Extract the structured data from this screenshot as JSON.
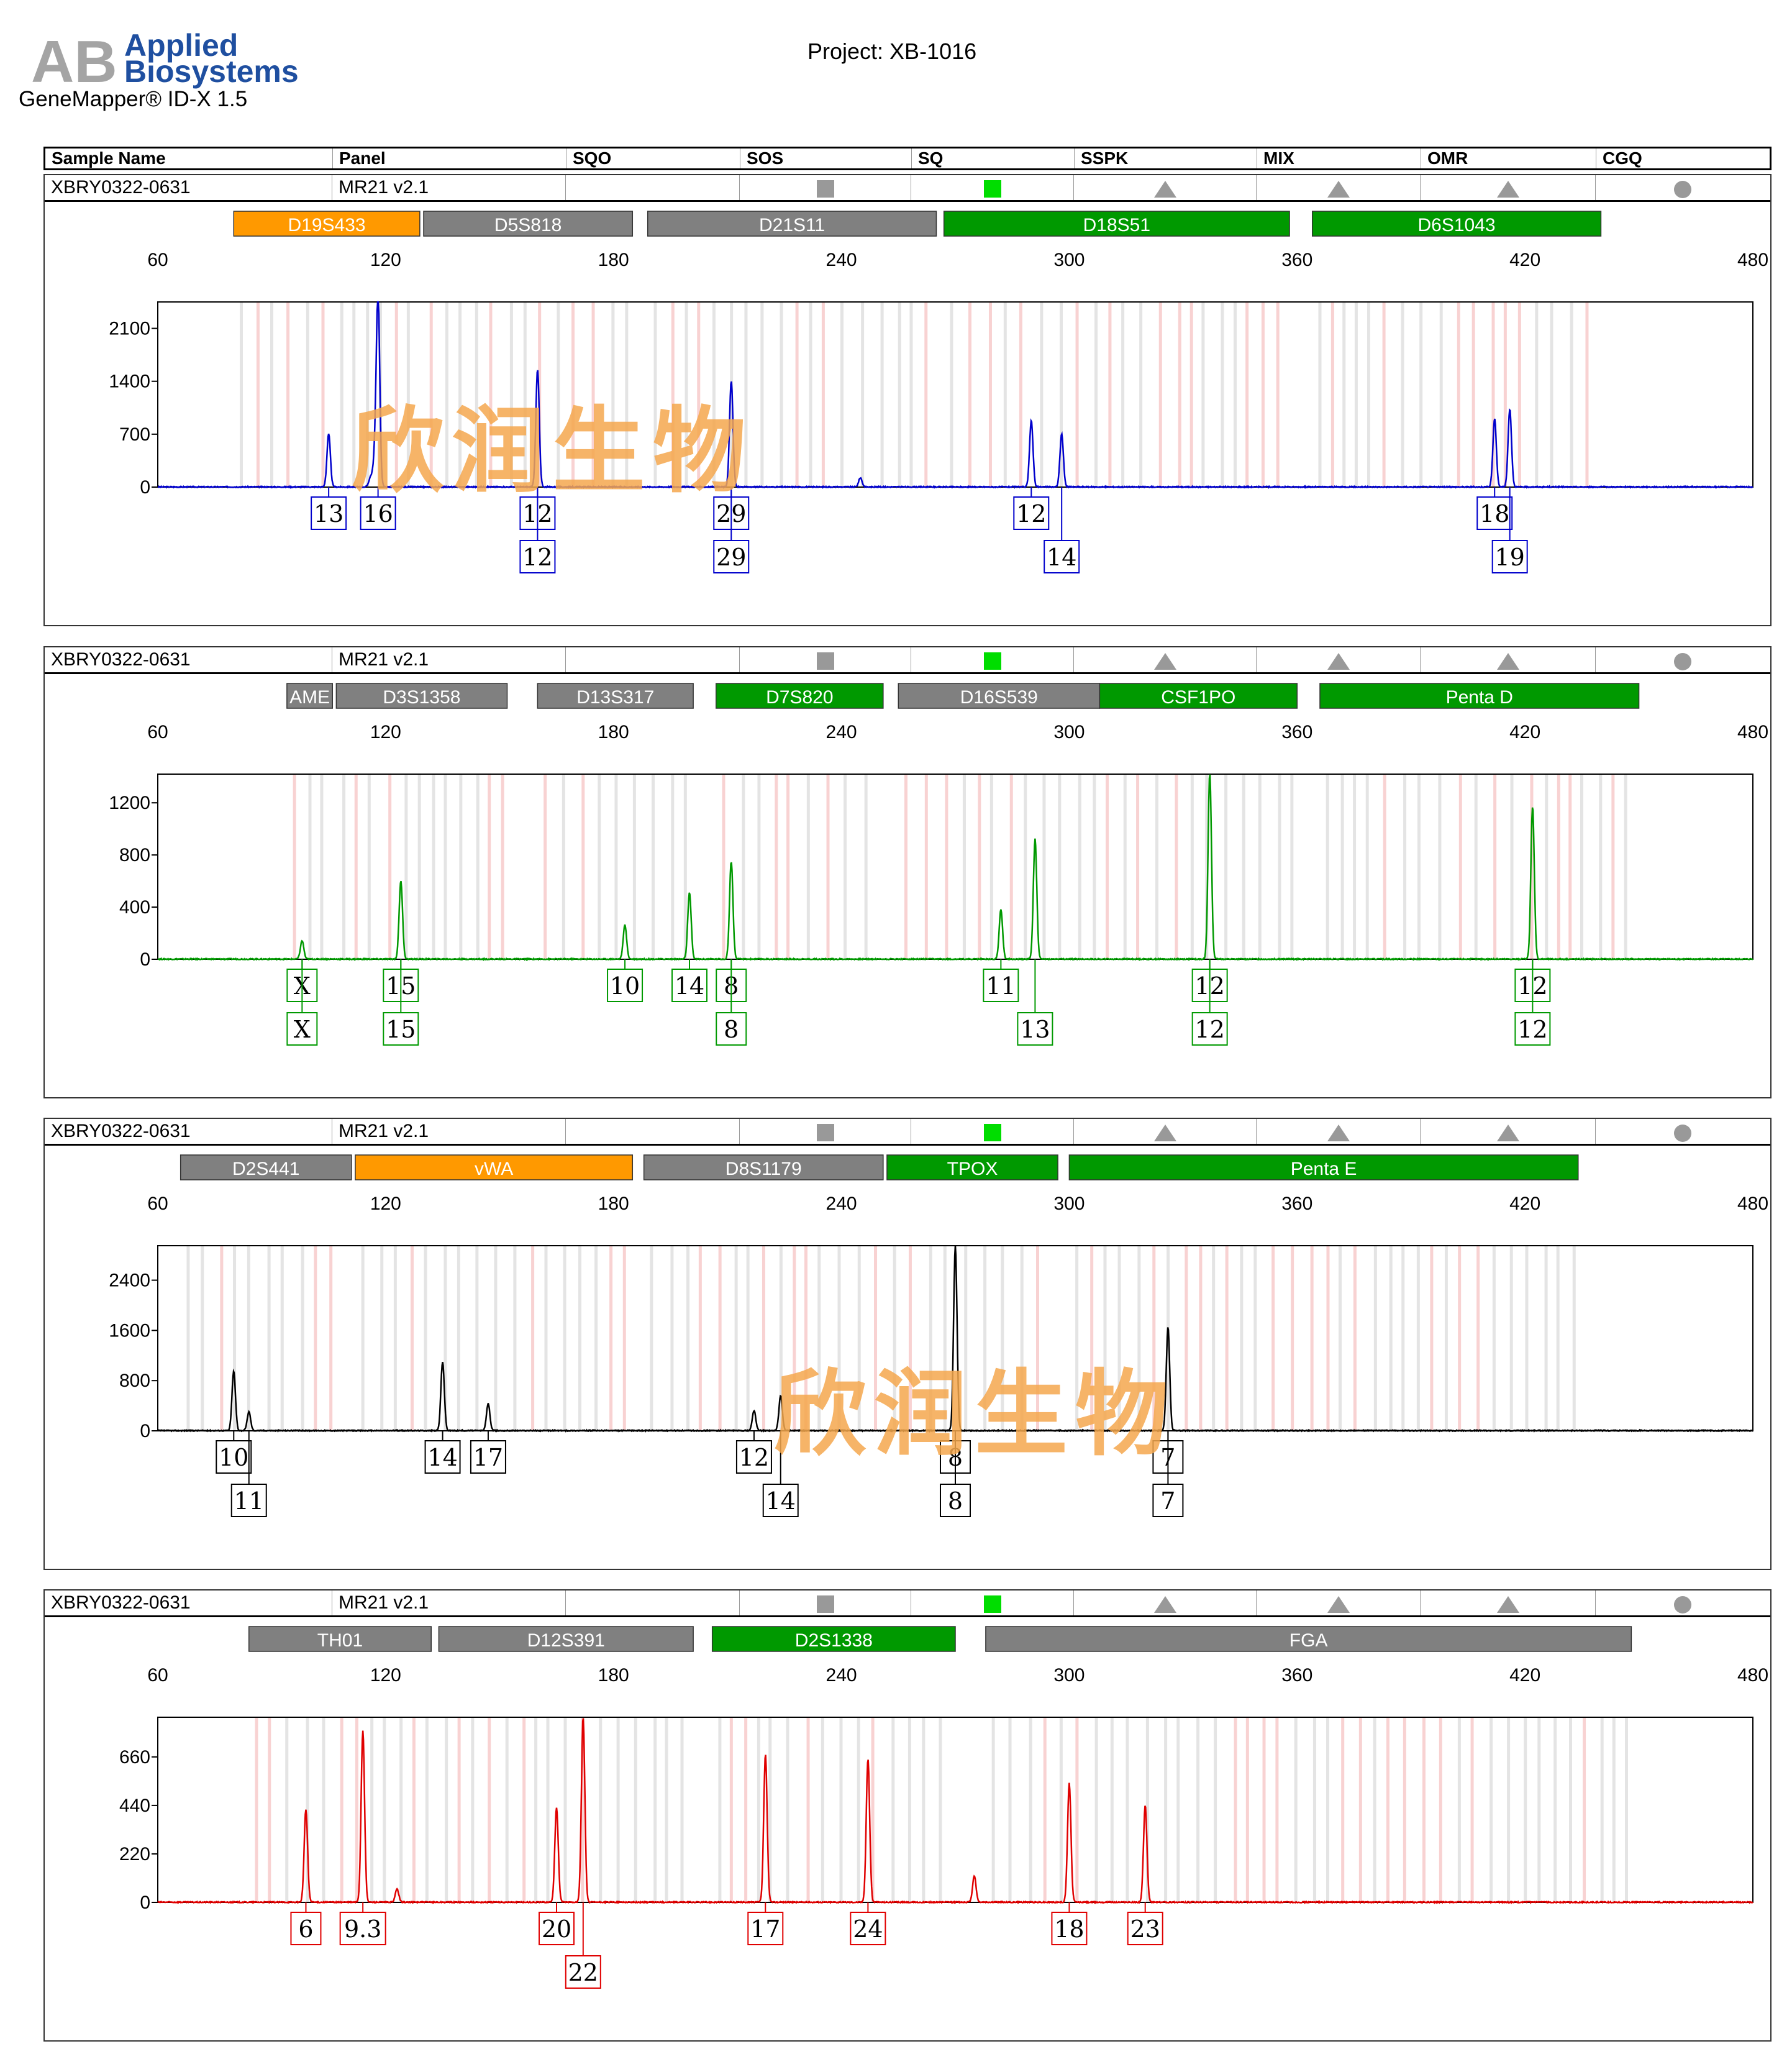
{
  "brand": {
    "line1": "Applied",
    "line2": "Biosystems"
  },
  "app_title": "GeneMapper® ID-X  1.5",
  "project": "Project: XB-1016",
  "columns": [
    "Sample Name",
    "Panel",
    "SQO",
    "SOS",
    "SQ",
    "SSPK",
    "MIX",
    "OMR",
    "CGQ"
  ],
  "watermark": "欣润生物",
  "colors": {
    "gray": "#808080",
    "green": "#009900",
    "orange": "#ff9900",
    "blue": "#0000cc",
    "darkgreen": "#009900",
    "black": "#000000",
    "red": "#e00000",
    "sq_green": "#00dd00",
    "sym_gray": "#999999"
  },
  "panels": [
    {
      "sample": "XBRY0322-0631",
      "panel": "MR21  v2.1",
      "indicators": [
        "square-gray",
        "square-green",
        "triangle",
        "triangle",
        "triangle",
        "circle"
      ],
      "dye_color": "#0000cc",
      "markers": [
        {
          "name": "D19S433",
          "start": 80,
          "end": 129,
          "status": "orange"
        },
        {
          "name": "D5S818",
          "start": 130,
          "end": 185,
          "status": "gray"
        },
        {
          "name": "D21S11",
          "start": 189,
          "end": 265,
          "status": "gray"
        },
        {
          "name": "D18S51",
          "start": 267,
          "end": 358,
          "status": "green"
        },
        {
          "name": "D6S1043",
          "start": 364,
          "end": 440,
          "status": "green"
        }
      ],
      "chart_data": {
        "type": "line",
        "x_ticks": [
          60,
          120,
          180,
          240,
          300,
          360,
          420,
          480
        ],
        "y_ticks": [
          0,
          700,
          1400,
          2100
        ],
        "ylim": [
          0,
          2450
        ],
        "xlim": [
          60,
          480
        ],
        "peaks": [
          {
            "x": 105,
            "y": 700
          },
          {
            "x": 117,
            "y": 250
          },
          {
            "x": 117.5,
            "y": 200
          },
          {
            "x": 116,
            "y": 120
          },
          {
            "x": 118,
            "y": 2450
          },
          {
            "x": 160,
            "y": 1550
          },
          {
            "x": 211,
            "y": 1400
          },
          {
            "x": 245,
            "y": 120
          },
          {
            "x": 290,
            "y": 880
          },
          {
            "x": 298,
            "y": 700
          },
          {
            "x": 412,
            "y": 900
          },
          {
            "x": 416,
            "y": 1030
          }
        ],
        "allele_calls": [
          {
            "row": 1,
            "label": "13",
            "x": 105
          },
          {
            "row": 1,
            "label": "16",
            "x": 118
          },
          {
            "row": 1,
            "label": "12",
            "x": 160
          },
          {
            "row": 1,
            "label": "29",
            "x": 211
          },
          {
            "row": 1,
            "label": "12",
            "x": 290
          },
          {
            "row": 1,
            "label": "18",
            "x": 412
          },
          {
            "row": 2,
            "label": "12",
            "x": 160
          },
          {
            "row": 2,
            "label": "29",
            "x": 211
          },
          {
            "row": 2,
            "label": "14",
            "x": 298
          },
          {
            "row": 2,
            "label": "19",
            "x": 416
          }
        ]
      }
    },
    {
      "sample": "XBRY0322-0631",
      "panel": "MR21  v2.1",
      "indicators": [
        "square-gray",
        "square-green",
        "triangle",
        "triangle",
        "triangle",
        "circle"
      ],
      "dye_color": "#009900",
      "markers": [
        {
          "name": "AME",
          "start": 94,
          "end": 106,
          "status": "gray"
        },
        {
          "name": "D3S1358",
          "start": 107,
          "end": 152,
          "status": "gray"
        },
        {
          "name": "D13S317",
          "start": 160,
          "end": 201,
          "status": "gray"
        },
        {
          "name": "D7S820",
          "start": 207,
          "end": 251,
          "status": "green"
        },
        {
          "name": "D16S539",
          "start": 255,
          "end": 308,
          "status": "gray"
        },
        {
          "name": "CSF1PO",
          "start": 308,
          "end": 360,
          "status": "green"
        },
        {
          "name": "Penta D",
          "start": 366,
          "end": 450,
          "status": "green"
        }
      ],
      "chart_data": {
        "type": "line",
        "x_ticks": [
          60,
          120,
          180,
          240,
          300,
          360,
          420,
          480
        ],
        "y_ticks": [
          0,
          400,
          800,
          1200
        ],
        "ylim": [
          0,
          1420
        ],
        "xlim": [
          60,
          480
        ],
        "peaks": [
          {
            "x": 98,
            "y": 140
          },
          {
            "x": 124,
            "y": 600
          },
          {
            "x": 183,
            "y": 260
          },
          {
            "x": 200,
            "y": 510
          },
          {
            "x": 211,
            "y": 750
          },
          {
            "x": 282,
            "y": 380
          },
          {
            "x": 291,
            "y": 920
          },
          {
            "x": 337,
            "y": 1420
          },
          {
            "x": 422,
            "y": 1170
          }
        ],
        "allele_calls": [
          {
            "row": 1,
            "label": "X",
            "x": 98
          },
          {
            "row": 1,
            "label": "15",
            "x": 124
          },
          {
            "row": 1,
            "label": "10",
            "x": 183
          },
          {
            "row": 1,
            "label": "14",
            "x": 200
          },
          {
            "row": 1,
            "label": "8",
            "x": 211
          },
          {
            "row": 1,
            "label": "11",
            "x": 282
          },
          {
            "row": 1,
            "label": "12",
            "x": 337
          },
          {
            "row": 1,
            "label": "12",
            "x": 422
          },
          {
            "row": 2,
            "label": "X",
            "x": 98
          },
          {
            "row": 2,
            "label": "15",
            "x": 124
          },
          {
            "row": 2,
            "label": "8",
            "x": 211
          },
          {
            "row": 2,
            "label": "13",
            "x": 291
          },
          {
            "row": 2,
            "label": "12",
            "x": 337
          },
          {
            "row": 2,
            "label": "12",
            "x": 422
          }
        ]
      }
    },
    {
      "sample": "XBRY0322-0631",
      "panel": "MR21  v2.1",
      "indicators": [
        "square-gray",
        "square-green",
        "triangle",
        "triangle",
        "triangle",
        "circle"
      ],
      "dye_color": "#000000",
      "markers": [
        {
          "name": "D2S441",
          "start": 66,
          "end": 111,
          "status": "gray"
        },
        {
          "name": "vWA",
          "start": 112,
          "end": 185,
          "status": "orange"
        },
        {
          "name": "D8S1179",
          "start": 188,
          "end": 251,
          "status": "gray"
        },
        {
          "name": "TPOX",
          "start": 252,
          "end": 297,
          "status": "green"
        },
        {
          "name": "Penta E",
          "start": 300,
          "end": 434,
          "status": "green"
        }
      ],
      "chart_data": {
        "type": "line",
        "x_ticks": [
          60,
          120,
          180,
          240,
          300,
          360,
          420,
          480
        ],
        "y_ticks": [
          0,
          800,
          1600,
          2400
        ],
        "ylim": [
          0,
          2950
        ],
        "xlim": [
          60,
          480
        ],
        "peaks": [
          {
            "x": 80,
            "y": 950
          },
          {
            "x": 84,
            "y": 300
          },
          {
            "x": 135,
            "y": 1100
          },
          {
            "x": 147,
            "y": 430
          },
          {
            "x": 217,
            "y": 320
          },
          {
            "x": 224,
            "y": 550
          },
          {
            "x": 270,
            "y": 2950
          },
          {
            "x": 326,
            "y": 1650
          }
        ],
        "allele_calls": [
          {
            "row": 1,
            "label": "10",
            "x": 80
          },
          {
            "row": 1,
            "label": "14",
            "x": 135
          },
          {
            "row": 1,
            "label": "17",
            "x": 147
          },
          {
            "row": 1,
            "label": "12",
            "x": 217
          },
          {
            "row": 1,
            "label": "8",
            "x": 270
          },
          {
            "row": 1,
            "label": "7",
            "x": 326
          },
          {
            "row": 2,
            "label": "11",
            "x": 84
          },
          {
            "row": 2,
            "label": "14",
            "x": 224
          },
          {
            "row": 2,
            "label": "8",
            "x": 270
          },
          {
            "row": 2,
            "label": "7",
            "x": 326
          }
        ]
      }
    },
    {
      "sample": "XBRY0322-0631",
      "panel": "MR21  v2.1",
      "indicators": [
        "square-gray",
        "square-green",
        "triangle",
        "triangle",
        "triangle",
        "circle"
      ],
      "dye_color": "#e00000",
      "markers": [
        {
          "name": "TH01",
          "start": 84,
          "end": 132,
          "status": "gray"
        },
        {
          "name": "D12S391",
          "start": 134,
          "end": 201,
          "status": "gray"
        },
        {
          "name": "D2S1338",
          "start": 206,
          "end": 270,
          "status": "green"
        },
        {
          "name": "FGA",
          "start": 278,
          "end": 448,
          "status": "gray"
        }
      ],
      "chart_data": {
        "type": "line",
        "x_ticks": [
          60,
          120,
          180,
          240,
          300,
          360,
          420,
          480
        ],
        "y_ticks": [
          0,
          220,
          440,
          660
        ],
        "ylim": [
          0,
          840
        ],
        "xlim": [
          60,
          480
        ],
        "peaks": [
          {
            "x": 99,
            "y": 420
          },
          {
            "x": 114,
            "y": 780
          },
          {
            "x": 123,
            "y": 60
          },
          {
            "x": 165,
            "y": 430
          },
          {
            "x": 172,
            "y": 840
          },
          {
            "x": 220,
            "y": 670
          },
          {
            "x": 247,
            "y": 650
          },
          {
            "x": 275,
            "y": 120
          },
          {
            "x": 300,
            "y": 540
          },
          {
            "x": 320,
            "y": 440
          }
        ],
        "allele_calls": [
          {
            "row": 1,
            "label": "6",
            "x": 99
          },
          {
            "row": 1,
            "label": "9.3",
            "x": 114
          },
          {
            "row": 1,
            "label": "20",
            "x": 165
          },
          {
            "row": 1,
            "label": "17",
            "x": 220
          },
          {
            "row": 1,
            "label": "24",
            "x": 247
          },
          {
            "row": 1,
            "label": "18",
            "x": 300
          },
          {
            "row": 1,
            "label": "23",
            "x": 320
          },
          {
            "row": 2,
            "label": "22",
            "x": 172
          }
        ]
      }
    }
  ]
}
